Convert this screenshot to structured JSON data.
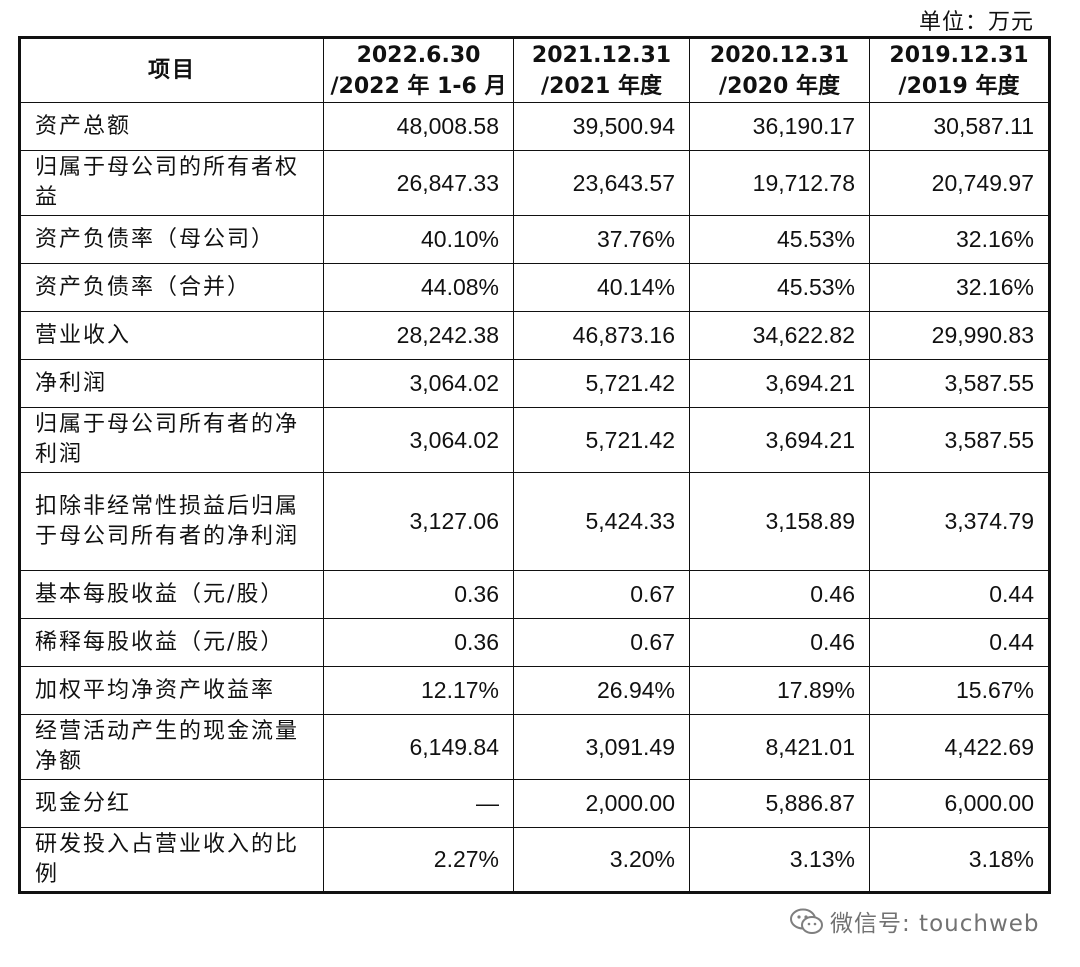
{
  "unit_label": "单位：万元",
  "table": {
    "headers": [
      {
        "line1": "项目",
        "line2": ""
      },
      {
        "line1": "2022.6.30",
        "line2": "/2022 年 1-6 月"
      },
      {
        "line1": "2021.12.31",
        "line2": "/2021 年度"
      },
      {
        "line1": "2020.12.31",
        "line2": "/2020 年度"
      },
      {
        "line1": "2019.12.31",
        "line2": "/2019 年度"
      }
    ],
    "rows": [
      {
        "label": "资产总额",
        "values": [
          "48,008.58",
          "39,500.94",
          "36,190.17",
          "30,587.11"
        ]
      },
      {
        "label": "归属于母公司的所有者权益",
        "values": [
          "26,847.33",
          "23,643.57",
          "19,712.78",
          "20,749.97"
        ]
      },
      {
        "label": "资产负债率（母公司）",
        "values": [
          "40.10%",
          "37.76%",
          "45.53%",
          "32.16%"
        ]
      },
      {
        "label": "资产负债率（合并）",
        "values": [
          "44.08%",
          "40.14%",
          "45.53%",
          "32.16%"
        ]
      },
      {
        "label": "营业收入",
        "values": [
          "28,242.38",
          "46,873.16",
          "34,622.82",
          "29,990.83"
        ]
      },
      {
        "label": "净利润",
        "values": [
          "3,064.02",
          "5,721.42",
          "3,694.21",
          "3,587.55"
        ]
      },
      {
        "label": "归属于母公司所有者的净利润",
        "values": [
          "3,064.02",
          "5,721.42",
          "3,694.21",
          "3,587.55"
        ]
      },
      {
        "label": "扣除非经常性损益后归属于母公司所有者的净利润",
        "values": [
          "3,127.06",
          "5,424.33",
          "3,158.89",
          "3,374.79"
        ]
      },
      {
        "label": "基本每股收益（元/股）",
        "values": [
          "0.36",
          "0.67",
          "0.46",
          "0.44"
        ]
      },
      {
        "label": "稀释每股收益（元/股）",
        "values": [
          "0.36",
          "0.67",
          "0.46",
          "0.44"
        ]
      },
      {
        "label": "加权平均净资产收益率",
        "values": [
          "12.17%",
          "26.94%",
          "17.89%",
          "15.67%"
        ]
      },
      {
        "label": "经营活动产生的现金流量净额",
        "values": [
          "6,149.84",
          "3,091.49",
          "8,421.01",
          "4,422.69"
        ]
      },
      {
        "label": "现金分红",
        "values": [
          "—",
          "2,000.00",
          "5,886.87",
          "6,000.00"
        ]
      },
      {
        "label": "研发投入占营业收入的比例",
        "values": [
          "2.27%",
          "3.20%",
          "3.13%",
          "3.18%"
        ]
      }
    ]
  },
  "watermark": {
    "text": "微信号: touchweb",
    "icon": "wechat-icon"
  }
}
